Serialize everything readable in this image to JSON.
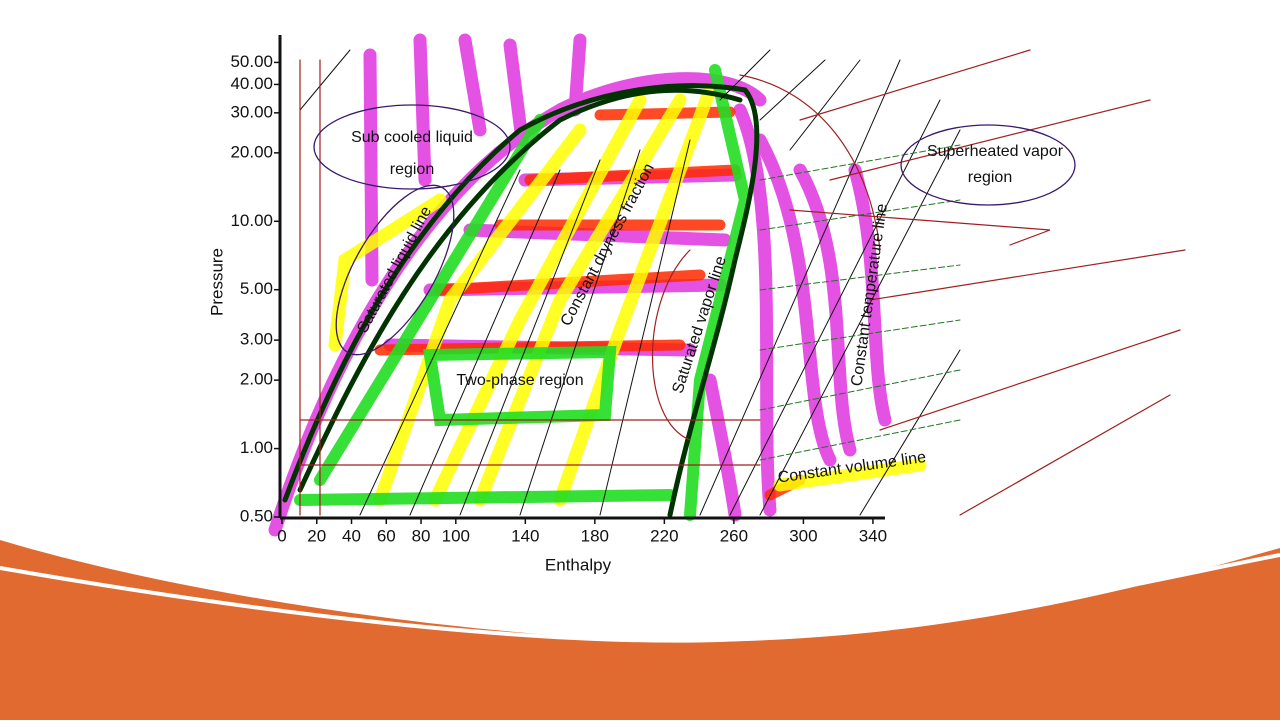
{
  "chart_data": {
    "type": "line",
    "x_label": "Enthalpy",
    "y_label": "Pressure",
    "xlim": [
      0,
      345
    ],
    "ylim": [
      0.5,
      66
    ],
    "log_y": true,
    "xticks": [
      0,
      20,
      40,
      60,
      80,
      100,
      140,
      180,
      220,
      260,
      300,
      340
    ],
    "yticks": [
      {
        "value": 0.5,
        "label": "0.50"
      },
      {
        "value": 1,
        "label": "1.00"
      },
      {
        "value": 2,
        "label": "2.00"
      },
      {
        "value": 3,
        "label": "3.00"
      },
      {
        "value": 5,
        "label": "5.00"
      },
      {
        "value": 10,
        "label": "10.00"
      },
      {
        "value": 20,
        "label": "20.00"
      },
      {
        "value": 30,
        "label": "30.00"
      },
      {
        "value": 40,
        "label": "40.00"
      },
      {
        "value": 50,
        "label": "50.00"
      }
    ],
    "annotations": {
      "subcooled": [
        "Sub cooled liquid",
        "region"
      ],
      "superheated": [
        "Superheated vapor",
        "region"
      ],
      "saturated_liquid": "Saturated liquid line",
      "dryness": "Constant dryness fraction",
      "saturated_vapor": "Saturated vapor line",
      "temperature": "Constant temperature line",
      "two_phase": "Two-phase region",
      "volume": "Constant volume line"
    }
  }
}
